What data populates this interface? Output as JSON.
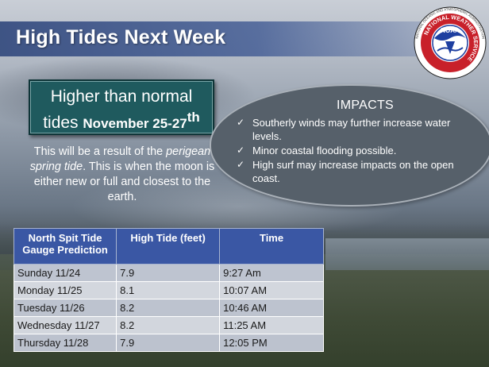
{
  "slide": {
    "title": "High Tides Next Week"
  },
  "logo": {
    "top_text": "NOAA",
    "ring_text": "NATIONAL WEATHER SERVICE",
    "outer_text": "NATIONAL OCEANIC AND ATMOSPHERIC ADMINISTRATION",
    "accent": "#1e3fa0"
  },
  "callout": {
    "line1": "Higher than normal",
    "line2_prefix": "tides",
    "dates": "November 25-27",
    "suffix": "th"
  },
  "description": {
    "part1": "This will be a result of the",
    "italic": "perigean spring tide",
    "part2": ". This is when the moon is either new or full and closest to the earth."
  },
  "impacts": {
    "title": "IMPACTS",
    "items": [
      "Southerly winds may further increase water levels.",
      "Minor coastal flooding possible.",
      "High surf may increase impacts on the open coast."
    ]
  },
  "table": {
    "headers": [
      "North Spit Tide Gauge Prediction",
      "High Tide (feet)",
      "Time"
    ],
    "rows": [
      {
        "day": "Sunday 11/24",
        "height": "7.9",
        "time": "9:27 Am"
      },
      {
        "day": "Monday 11/25",
        "height": "8.1",
        "time": "10:07 AM"
      },
      {
        "day": "Tuesday 11/26",
        "height": "8.2",
        "time": "10:46 AM"
      },
      {
        "day": "Wednesday 11/27",
        "height": "8.2",
        "time": "11:25 AM"
      },
      {
        "day": "Thursday 11/28",
        "height": "7.9",
        "time": "12:05 PM"
      }
    ]
  }
}
